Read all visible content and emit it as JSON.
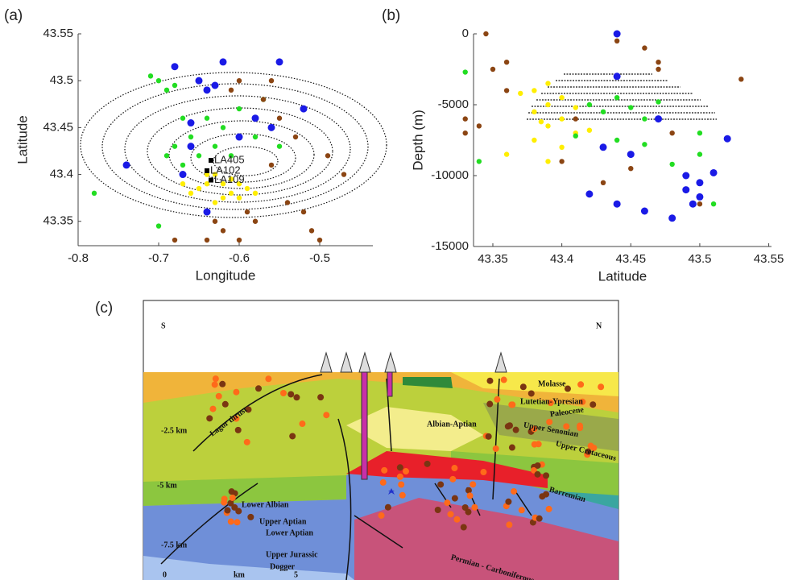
{
  "chart_data": [
    {
      "type": "scatter",
      "panel_label": "(a)",
      "x_label": "Longitude",
      "y_label": "Latitude",
      "xlim": [
        -0.8,
        -0.434
      ],
      "ylim": [
        43.324,
        43.55
      ],
      "xticks": [
        -0.8,
        -0.7,
        -0.6,
        -0.5
      ],
      "yticks": [
        43.35,
        43.4,
        43.45,
        43.5,
        43.55
      ],
      "series": [
        {
          "color": "#22dd22",
          "x": [
            -0.7,
            -0.69,
            -0.68,
            -0.71,
            -0.67,
            -0.66,
            -0.68,
            -0.65,
            -0.62,
            -0.6,
            -0.58,
            -0.67,
            -0.63,
            -0.57,
            -0.78,
            -0.7,
            -0.64,
            -0.61,
            -0.69,
            -0.55
          ],
          "values": [
            43.5,
            43.49,
            43.495,
            43.505,
            43.46,
            43.44,
            43.43,
            43.42,
            43.45,
            43.47,
            43.44,
            43.41,
            43.43,
            43.48,
            43.38,
            43.345,
            43.46,
            43.42,
            43.42,
            43.43
          ]
        },
        {
          "color": "#1a1ae6",
          "x": [
            -0.65,
            -0.64,
            -0.63,
            -0.66,
            -0.67,
            -0.74,
            -0.6,
            -0.56,
            -0.52,
            -0.68,
            -0.62,
            -0.58,
            -0.64,
            -0.55,
            -0.66
          ],
          "values": [
            43.5,
            43.49,
            43.495,
            43.43,
            43.4,
            43.41,
            43.44,
            43.45,
            43.47,
            43.515,
            43.52,
            43.46,
            43.36,
            43.52,
            43.455
          ]
        },
        {
          "color": "#8b4513",
          "x": [
            -0.55,
            -0.53,
            -0.56,
            -0.57,
            -0.49,
            -0.47,
            -0.6,
            -0.62,
            -0.58,
            -0.64,
            -0.52,
            -0.51,
            -0.5,
            -0.54,
            -0.59,
            -0.61,
            -0.68,
            -0.6,
            -0.56,
            -0.63
          ],
          "values": [
            43.46,
            43.44,
            43.5,
            43.48,
            43.42,
            43.4,
            43.33,
            43.34,
            43.35,
            43.33,
            43.36,
            43.34,
            43.33,
            43.37,
            43.36,
            43.49,
            43.33,
            43.5,
            43.41,
            43.35
          ]
        },
        {
          "color": "#ffee00",
          "x": [
            -0.64,
            -0.63,
            -0.62,
            -0.65,
            -0.61,
            -0.6,
            -0.66,
            -0.62,
            -0.59,
            -0.63,
            -0.64,
            -0.61,
            -0.67,
            -0.58,
            -0.6
          ],
          "values": [
            43.39,
            43.4,
            43.39,
            43.385,
            43.38,
            43.39,
            43.38,
            43.375,
            43.385,
            43.37,
            43.4,
            43.395,
            43.39,
            43.38,
            43.375
          ]
        }
      ],
      "annotations": [
        {
          "text": "LA405",
          "x": -0.635,
          "y": 43.415
        },
        {
          "text": "LA102",
          "x": -0.64,
          "y": 43.404
        },
        {
          "text": "LA109",
          "x": -0.635,
          "y": 43.394
        }
      ]
    },
    {
      "type": "scatter",
      "panel_label": "(b)",
      "x_label": "Latitude",
      "y_label": "Depth (m)",
      "xlim": [
        43.336,
        43.552
      ],
      "ylim": [
        -15000,
        0
      ],
      "xticks": [
        43.35,
        43.4,
        43.45,
        43.5,
        43.55
      ],
      "yticks": [
        -15000,
        -10000,
        -5000,
        0
      ],
      "series": [
        {
          "color": "#ffee00",
          "x": [
            43.39,
            43.38,
            43.4,
            43.39,
            43.38,
            43.4,
            43.39,
            43.41,
            43.38,
            43.4,
            43.39,
            43.37,
            43.41,
            43.385,
            43.36,
            43.42
          ],
          "values": [
            -3500,
            -4000,
            -4500,
            -5000,
            -5500,
            -6000,
            -6500,
            -7000,
            -7500,
            -8000,
            -9000,
            -4200,
            -5200,
            -6200,
            -8500,
            -6800
          ]
        },
        {
          "color": "#22dd22",
          "x": [
            43.42,
            43.43,
            43.44,
            43.45,
            43.46,
            43.47,
            43.44,
            43.46,
            43.5,
            43.5,
            43.48,
            43.43,
            43.34,
            43.33,
            43.41,
            43.51
          ],
          "values": [
            -5000,
            -5500,
            -4500,
            -5200,
            -6000,
            -4800,
            -7500,
            -7800,
            -8500,
            -7000,
            -9200,
            -8000,
            -9000,
            -2700,
            -7200,
            -12000
          ]
        },
        {
          "color": "#1a1ae6",
          "x": [
            43.49,
            43.5,
            43.49,
            43.5,
            43.51,
            43.495,
            43.47,
            43.45,
            43.43,
            43.42,
            43.44,
            43.46,
            43.48,
            43.44,
            43.52,
            43.44
          ],
          "values": [
            -10000,
            -10500,
            -11000,
            -11500,
            -9800,
            -12000,
            -6000,
            -8500,
            -8000,
            -11300,
            -12000,
            -12500,
            -13000,
            0,
            -7400,
            -3000
          ]
        },
        {
          "color": "#8b4513",
          "x": [
            43.33,
            43.34,
            43.33,
            43.345,
            43.35,
            43.36,
            43.44,
            43.46,
            43.47,
            43.45,
            43.43,
            43.4,
            43.48,
            43.47,
            43.53,
            43.5,
            43.41,
            43.36
          ],
          "values": [
            -6000,
            -6500,
            -7000,
            0,
            -2500,
            -4000,
            -500,
            -1000,
            -2000,
            -9500,
            -10500,
            -9000,
            -7000,
            -2500,
            -3200,
            -12000,
            -6000,
            -2000
          ]
        }
      ]
    }
  ],
  "cross_section": {
    "panel_label": "(c)",
    "labels": [
      "S",
      "N",
      "Molasse",
      "Lutetian-Ypresian",
      "Paleocene",
      "Upper Senonian",
      "Upper Cretaceous",
      "Albian-Aptian",
      "Barremian",
      "Lagor thrust",
      "-2.5 km",
      "-5 km",
      "-7.5 km",
      "Lower Albian",
      "Upper Aptian",
      "Lower Aptian",
      "Upper Jurassic",
      "Dogger",
      "Permian - Carboniferous",
      "0",
      "km",
      "5"
    ]
  }
}
